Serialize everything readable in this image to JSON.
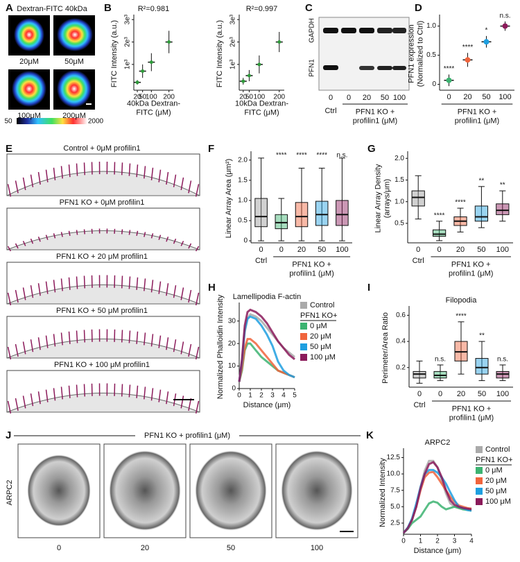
{
  "panel_labels": [
    "A",
    "B",
    "C",
    "D",
    "E",
    "F",
    "G",
    "H",
    "I",
    "J",
    "K"
  ],
  "panel_a": {
    "title": "Dextran-FITC 40kDa",
    "labels": [
      "20μM",
      "50μM",
      "100μM",
      "200μM"
    ],
    "colorbar": [
      50,
      2000
    ]
  },
  "panel_c": {
    "rows": [
      "PFN1",
      "GAPDH"
    ],
    "lanes": [
      0,
      0,
      20,
      50,
      100
    ],
    "ctrl": "Ctrl",
    "group": "PFN1 KO +\nprofilin1 (μM)"
  },
  "panel_e": {
    "captions": [
      "Control + 0μM profilin1",
      "PFN1 KO + 0μM profilin1",
      "PFN1 KO + 20 μM profilin1",
      "PFN1 KO + 50 μM profilin1",
      "PFN1 KO + 100 μM profilin1"
    ]
  },
  "panel_j": {
    "title": "PFN1 KO + profilin1 (μM)",
    "ylabel": "ARPC2",
    "labels": [
      0,
      20,
      50,
      100
    ]
  },
  "chart_data": [
    {
      "type": "strip",
      "annotation": "R²=0.981",
      "xlabel": "40kDa Dextran-\nFITC (μM)",
      "ylabel": "FITC Intensity (a.u.)",
      "x": [
        20,
        50,
        100,
        200
      ],
      "values": [
        200,
        700,
        1100,
        2000
      ],
      "errors": [
        100,
        300,
        400,
        500
      ],
      "color": "#2e9a3a",
      "xlim": [
        0,
        225
      ],
      "ylim": [
        -150,
        3100
      ],
      "xticks": [
        20,
        50,
        100,
        200
      ],
      "yticks": [
        {
          "value": 1000,
          "label": "1e³"
        },
        {
          "value": 2000,
          "label": "2e³"
        },
        {
          "value": 3000,
          "label": "3e³"
        }
      ]
    },
    {
      "type": "strip",
      "annotation": "R²=0.997",
      "xlabel": "10kDa Dextran-\nFITC (μM)",
      "ylabel": "FITC Intensity (a.u.)",
      "x": [
        20,
        50,
        100,
        200
      ],
      "values": [
        250,
        500,
        1000,
        2000
      ],
      "errors": [
        150,
        250,
        400,
        450
      ],
      "color": "#2e9a3a",
      "xlim": [
        0,
        225
      ],
      "ylim": [
        -150,
        3100
      ],
      "xticks": [
        20,
        50,
        100,
        200
      ],
      "yticks": [
        {
          "value": 1000,
          "label": "1e³"
        },
        {
          "value": 2000,
          "label": "2e³"
        },
        {
          "value": 3000,
          "label": "3e³"
        }
      ]
    },
    {
      "type": "dot",
      "ylabel": "PFN1 expression\n(Normalized to Ctrl)",
      "categories": [
        "0",
        "20",
        "50",
        "100"
      ],
      "values": [
        0.07,
        0.42,
        0.73,
        1.0
      ],
      "errors": [
        0.1,
        0.12,
        0.1,
        0.08
      ],
      "colors": [
        "#3cb371",
        "#f0643c",
        "#1e9fe0",
        "#8b1a5a"
      ],
      "annotations": [
        "****",
        "****",
        "*",
        "n.s."
      ],
      "group_labels": [
        "PFN1 KO +\nprofilin1 (μM)"
      ],
      "ylim": [
        -0.1,
        1.15
      ],
      "yticks": [
        0,
        0.5,
        {
          "value": 1,
          "label": "1.0"
        }
      ]
    },
    {
      "type": "box",
      "ylabel": "Linear Array Area (μm²)",
      "categories": [
        "0",
        "0",
        "20",
        "50",
        "100"
      ],
      "boxes": [
        [
          0,
          0.35,
          0.6,
          1.05,
          2.05
        ],
        [
          0,
          0.3,
          0.45,
          0.65,
          1.05
        ],
        [
          0,
          0.35,
          0.6,
          0.95,
          1.8
        ],
        [
          0,
          0.38,
          0.65,
          0.98,
          1.8
        ],
        [
          0,
          0.38,
          0.65,
          1.0,
          2.05
        ]
      ],
      "colors": [
        "#999999",
        "#3cb371",
        "#f0643c",
        "#1e9fe0",
        "#8b1a5a"
      ],
      "annotations": [
        null,
        "****",
        "****",
        "****",
        "n.s."
      ],
      "group_labels": [
        "Ctrl",
        "PFN1 KO +\nprofilin1 (μM)"
      ],
      "ylim": [
        -0.05,
        2.15
      ],
      "yticks": [
        0,
        0.5,
        {
          "value": 1,
          "label": "1.0"
        },
        1.5,
        {
          "value": 2,
          "label": "2.0"
        }
      ]
    },
    {
      "type": "box",
      "ylabel": "Linear Array Density\n(arrays/μm)",
      "categories": [
        "0",
        "0",
        "20",
        "50",
        "100"
      ],
      "boxes": [
        [
          0.6,
          0.9,
          1.1,
          1.25,
          1.6
        ],
        [
          0.1,
          0.2,
          0.25,
          0.35,
          0.55
        ],
        [
          0.3,
          0.45,
          0.55,
          0.65,
          0.85
        ],
        [
          0.4,
          0.55,
          0.65,
          0.9,
          1.35
        ],
        [
          0.55,
          0.7,
          0.8,
          0.95,
          1.25
        ]
      ],
      "colors": [
        "#999999",
        "#3cb371",
        "#f0643c",
        "#1e9fe0",
        "#8b1a5a"
      ],
      "annotations": [
        null,
        "****",
        "****",
        "**",
        "**"
      ],
      "group_labels": [
        "Ctrl",
        "PFN1 KO +\nprofilin1 (μM)"
      ],
      "ylim": [
        0.05,
        2.1
      ],
      "yticks": [
        0.5,
        {
          "value": 1,
          "label": "1.0"
        },
        1.5,
        {
          "value": 2,
          "label": "2.0"
        }
      ]
    },
    {
      "type": "line",
      "title": "Lamellipodia F-actin",
      "xlabel": "Distance (μm)",
      "ylabel": "Normalized Phalloidin Intensity",
      "legend_group": "PFN1 KO+",
      "x": [
        0,
        0.25,
        0.5,
        0.75,
        1,
        1.5,
        2,
        2.5,
        3,
        3.5,
        4,
        4.5,
        5
      ],
      "series": [
        {
          "name": "Control",
          "color": "#aaaaaa",
          "values": [
            3,
            12,
            25,
            31,
            33,
            32,
            30,
            27,
            24,
            21,
            18,
            16,
            14
          ]
        },
        {
          "name": "0 μM",
          "color": "#3cb371",
          "values": [
            3,
            8,
            17,
            20,
            20,
            17,
            14,
            12,
            10,
            8,
            7,
            6,
            5
          ]
        },
        {
          "name": "20 μM",
          "color": "#f0643c",
          "values": [
            3,
            9,
            18,
            22,
            22,
            20,
            17,
            14,
            11,
            8,
            7,
            6,
            5
          ]
        },
        {
          "name": "50 μM",
          "color": "#1e9fe0",
          "values": [
            3,
            12,
            26,
            31,
            32,
            31,
            28,
            24,
            19,
            12,
            8,
            6,
            5
          ]
        },
        {
          "name": "100 μM",
          "color": "#8b1a5a",
          "values": [
            3,
            13,
            28,
            34,
            35,
            34,
            32,
            29,
            25,
            21,
            18,
            15,
            13
          ]
        }
      ],
      "xlim": [
        0,
        5
      ],
      "ylim": [
        0,
        37
      ],
      "xticks": [
        0,
        1,
        2,
        3,
        4,
        5
      ],
      "yticks": [
        0,
        10,
        20,
        30
      ]
    },
    {
      "type": "box",
      "title": "Filopodia",
      "ylabel": "Perimeter/Area Ratio",
      "categories": [
        "0",
        "0",
        "20",
        "50",
        "100"
      ],
      "boxes": [
        [
          0.08,
          0.12,
          0.15,
          0.17,
          0.25
        ],
        [
          0.1,
          0.12,
          0.14,
          0.17,
          0.22
        ],
        [
          0.15,
          0.25,
          0.32,
          0.4,
          0.55
        ],
        [
          0.1,
          0.15,
          0.2,
          0.27,
          0.4
        ],
        [
          0.1,
          0.12,
          0.15,
          0.17,
          0.22
        ]
      ],
      "colors": [
        "#999999",
        "#3cb371",
        "#f0643c",
        "#1e9fe0",
        "#8b1a5a"
      ],
      "annotations": [
        null,
        "n.s.",
        "****",
        "**",
        "n.s."
      ],
      "group_labels": [
        "Ctrl",
        "PFN1 KO +\nprofilin1 (μM)"
      ],
      "ylim": [
        0.05,
        0.65
      ],
      "yticks": [
        0.2,
        0.4,
        0.6
      ]
    },
    {
      "type": "line",
      "title": "ARPC2",
      "xlabel": "Distance (μm)",
      "ylabel": "Normalized Intensity",
      "legend_group": "PFN1 KO+",
      "x": [
        0,
        0.25,
        0.5,
        0.75,
        1,
        1.25,
        1.5,
        1.75,
        2,
        2.25,
        2.5,
        2.75,
        3,
        3.25,
        3.5,
        3.75,
        4
      ],
      "series": [
        {
          "name": "Control",
          "color": "#aaaaaa",
          "values": [
            1,
            1.8,
            3,
            5,
            8,
            10.5,
            12,
            12,
            11,
            9,
            7,
            5.5,
            5,
            4.8,
            4.7,
            4.6,
            4.5
          ]
        },
        {
          "name": "0 μM",
          "color": "#3cb371",
          "values": [
            1,
            1.6,
            2.5,
            3,
            3.5,
            4.5,
            5.5,
            5.8,
            5.6,
            5,
            4.6,
            4.8,
            5,
            4.8,
            4.6,
            4.5,
            4.4
          ]
        },
        {
          "name": "20 μM",
          "color": "#f0643c",
          "values": [
            1,
            1.8,
            3,
            5,
            7.5,
            9.5,
            10.2,
            10.3,
            9.5,
            8.5,
            7.5,
            6.5,
            5.8,
            5.2,
            5,
            4.8,
            4.7
          ]
        },
        {
          "name": "50 μM",
          "color": "#1e9fe0",
          "values": [
            1,
            1.8,
            3.2,
            5.5,
            8,
            10,
            10.6,
            10.6,
            10.2,
            9.5,
            8.5,
            7.2,
            6,
            5,
            4.8,
            4.5,
            4.4
          ]
        },
        {
          "name": "100 μM",
          "color": "#8b1a5a",
          "values": [
            1,
            1.7,
            3,
            5,
            7.8,
            10,
            11.5,
            11.8,
            11,
            9.5,
            7.5,
            6,
            5.3,
            5,
            4.8,
            4.7,
            4.6
          ]
        }
      ],
      "xlim": [
        0,
        4
      ],
      "ylim": [
        0.8,
        13.5
      ],
      "xticks": [
        0,
        1,
        2,
        3,
        4
      ],
      "yticks": [
        2.5,
        {
          "value": 5,
          "label": "5.0"
        },
        {
          "value": 7.5,
          "label": "7.5"
        },
        {
          "value": 10,
          "label": "10.0"
        },
        12.5
      ]
    }
  ]
}
